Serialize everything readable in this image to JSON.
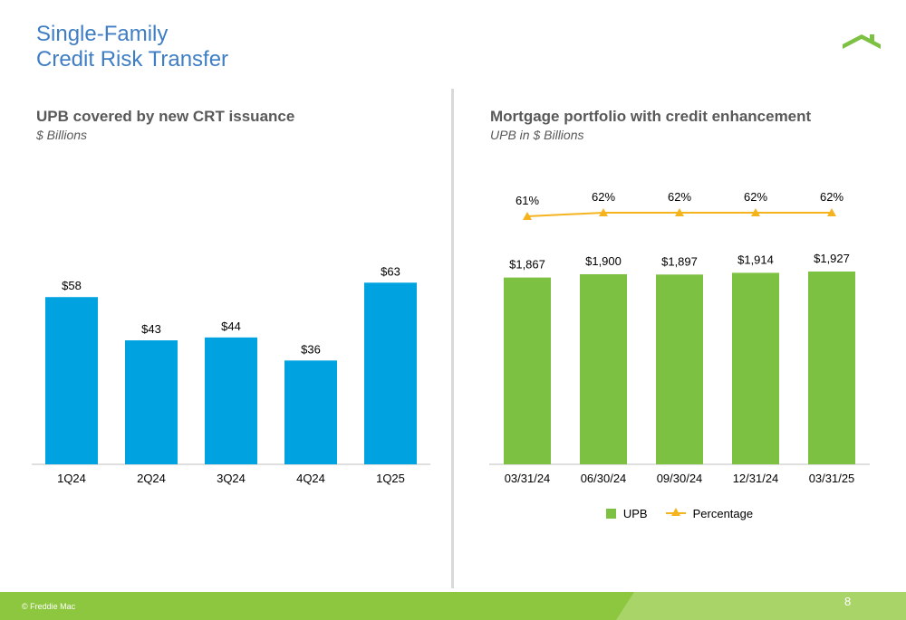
{
  "page": {
    "title_line1": "Single-Family",
    "title_line2": "Credit Risk Transfer",
    "copyright": "© Freddie Mac",
    "page_number": "8",
    "logo_icon": "house-roof-icon"
  },
  "colors": {
    "title": "#3f7ec4",
    "bar_blue": "#00a3e0",
    "bar_green": "#7dc142",
    "line_gold": "#f5b31e",
    "footer_green": "#8dc63f",
    "footer_light": "#a8d468"
  },
  "chart_data": [
    {
      "type": "bar",
      "title": "UPB covered by new CRT issuance",
      "subtitle": "$ Billions",
      "categories": [
        "1Q24",
        "2Q24",
        "3Q24",
        "4Q24",
        "1Q25"
      ],
      "values": [
        58,
        43,
        44,
        36,
        63
      ],
      "labels": [
        "$58",
        "$43",
        "$44",
        "$36",
        "$63"
      ],
      "ylim": [
        0,
        70
      ],
      "color": "#00a3e0",
      "grid": false,
      "legend": "none"
    },
    {
      "type": "bar",
      "title": "Mortgage portfolio with credit enhancement",
      "subtitle": "UPB in $ Billions",
      "categories": [
        "03/31/24",
        "06/30/24",
        "09/30/24",
        "12/31/24",
        "03/31/25"
      ],
      "series": [
        {
          "name": "UPB",
          "type": "bar",
          "values": [
            1867,
            1900,
            1897,
            1914,
            1927
          ],
          "labels": [
            "$1,867",
            "$1,900",
            "$1,897",
            "$1,914",
            "$1,927"
          ],
          "color": "#7dc142"
        },
        {
          "name": "Percentage",
          "type": "line",
          "values": [
            61,
            62,
            62,
            62,
            62
          ],
          "labels": [
            "61%",
            "62%",
            "62%",
            "62%",
            "62%"
          ],
          "color": "#f5b31e"
        }
      ],
      "ylim": [
        0,
        1927
      ],
      "grid": false,
      "legend": "bottom"
    }
  ]
}
